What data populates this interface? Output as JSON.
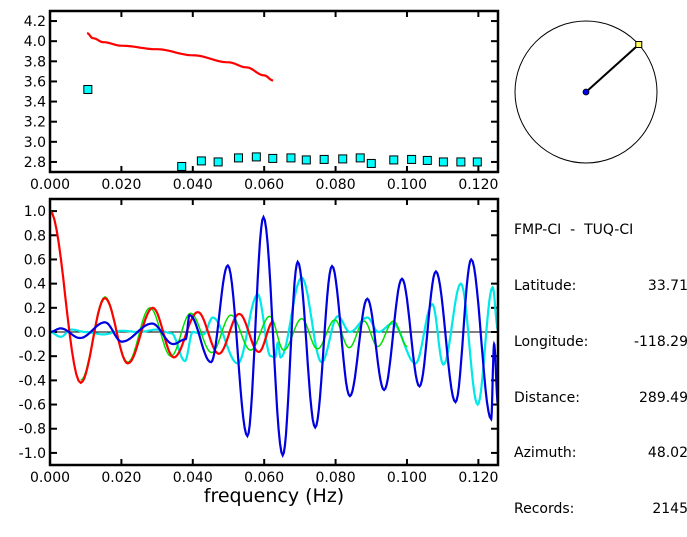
{
  "info": {
    "title": "FMP-CI  -  TUQ-CI",
    "rows": [
      {
        "label": "Latitude:",
        "value": "33.71"
      },
      {
        "label": "Longitude:",
        "value": "-118.29"
      },
      {
        "label": "Distance:",
        "value": "289.49"
      },
      {
        "label": "Azimuth:",
        "value": "48.02"
      },
      {
        "label": "Records:",
        "value": "2145"
      }
    ]
  },
  "azimuth_deg": 48.02,
  "colors": {
    "red": "#ff0000",
    "green": "#00e000",
    "blue": "#0000e0",
    "cyan": "#00e8e8",
    "square": "#00ffff"
  },
  "chart_data": [
    {
      "type": "scatter",
      "title": "",
      "xlabel": "",
      "ylabel": "",
      "xlim": [
        0,
        0.1255
      ],
      "ylim": [
        2.7,
        4.3
      ],
      "xticks": [
        "0.000",
        "0.020",
        "0.040",
        "0.060",
        "0.080",
        "0.100",
        "0.120"
      ],
      "yticks": [
        "2.8",
        "3.0",
        "3.2",
        "3.4",
        "3.6",
        "3.8",
        "4.0",
        "4.2"
      ],
      "series": [
        {
          "name": "red-curve",
          "kind": "line",
          "color": "red",
          "x": [
            0.0104,
            0.012,
            0.015,
            0.02,
            0.03,
            0.04,
            0.05,
            0.055,
            0.06,
            0.0625
          ],
          "y": [
            4.08,
            4.03,
            3.99,
            3.955,
            3.92,
            3.86,
            3.79,
            3.74,
            3.66,
            3.61
          ]
        },
        {
          "name": "squares",
          "kind": "points",
          "color": "square",
          "x": [
            0.0106,
            0.0369,
            0.0424,
            0.0471,
            0.0528,
            0.0578,
            0.0624,
            0.0675,
            0.0718,
            0.0768,
            0.082,
            0.0869,
            0.09,
            0.0963,
            0.1013,
            0.1057,
            0.1102,
            0.1151,
            0.1197
          ],
          "y": [
            3.52,
            2.755,
            2.81,
            2.8,
            2.84,
            2.85,
            2.835,
            2.84,
            2.82,
            2.825,
            2.83,
            2.84,
            2.785,
            2.82,
            2.825,
            2.815,
            2.8,
            2.8,
            2.8
          ]
        }
      ]
    },
    {
      "type": "line",
      "title": "",
      "xlabel": "frequency (Hz)",
      "ylabel": "",
      "xlim": [
        0,
        0.1255
      ],
      "ylim": [
        -1.1,
        1.1
      ],
      "xticks": [
        "0.000",
        "0.020",
        "0.040",
        "0.060",
        "0.080",
        "0.100",
        "0.120"
      ],
      "yticks": [
        "-1.0",
        "-0.8",
        "-0.6",
        "-0.4",
        "-0.2",
        "0.0",
        "0.2",
        "0.4",
        "0.6",
        "0.8",
        "1.0"
      ],
      "series": [
        {
          "name": "cyan",
          "color": "cyan",
          "x": [
            0,
            0.003,
            0.006,
            0.01,
            0.015,
            0.02,
            0.025,
            0.03,
            0.034,
            0.0378,
            0.04,
            0.043,
            0.0456,
            0.0526,
            0.0582,
            0.0618,
            0.0631,
            0.0638,
            0.0646,
            0.0705,
            0.0761,
            0.0806,
            0.084,
            0.0889,
            0.092,
            0.096,
            0.1024,
            0.1071,
            0.1102,
            0.1151,
            0.1198,
            0.124,
            0.1255
          ],
          "y": [
            0,
            -0.04,
            0.02,
            0,
            -0.02,
            0.01,
            0.0,
            0.02,
            -0.01,
            -0.24,
            0.0,
            -0.02,
            0.12,
            -0.26,
            0.31,
            -0.2,
            -0.21,
            -0.09,
            -0.21,
            0.45,
            -0.25,
            0.13,
            0.0,
            0.12,
            0.0,
            0.07,
            -0.26,
            0.23,
            -0.27,
            0.4,
            -0.6,
            0.37,
            0.02
          ]
        },
        {
          "name": "green",
          "color": "green",
          "x": [
            0.0086,
            0.0154,
            0.0218,
            0.028,
            0.0339,
            0.0394,
            0.0453,
            0.0507,
            0.0562,
            0.0616,
            0.0655,
            0.0705,
            0.0749,
            0.0798,
            0.0838,
            0.088,
            0.0918,
            0.0962,
            0.1001
          ],
          "y": [
            -0.4,
            0.29,
            -0.25,
            0.2,
            -0.2,
            0.155,
            -0.17,
            0.14,
            -0.15,
            0.13,
            -0.15,
            0.11,
            -0.14,
            0.1,
            -0.13,
            0.09,
            -0.12,
            0.09,
            -0.12
          ]
        },
        {
          "name": "red",
          "color": "red",
          "x": [
            0,
            0.0086,
            0.0154,
            0.0218,
            0.0288,
            0.0347,
            0.0414,
            0.0473,
            0.053,
            0.0585,
            0.0626
          ],
          "y": [
            1.0,
            -0.42,
            0.28,
            -0.26,
            0.2,
            -0.21,
            0.165,
            -0.18,
            0.15,
            -0.165,
            0.09
          ]
        },
        {
          "name": "blue",
          "color": "blue",
          "x": [
            0,
            0.003,
            0.0084,
            0.0154,
            0.0201,
            0.0286,
            0.0345,
            0.038,
            0.0391,
            0.0451,
            0.0498,
            0.0553,
            0.0598,
            0.0652,
            0.0694,
            0.0743,
            0.079,
            0.084,
            0.0889,
            0.0936,
            0.0986,
            0.1035,
            0.1081,
            0.1136,
            0.118,
            0.1236,
            0.1244,
            0.1255
          ],
          "y": [
            0,
            0.03,
            -0.05,
            0.08,
            -0.08,
            0.07,
            -0.1,
            -0.06,
            0.14,
            -0.25,
            0.55,
            -0.86,
            0.95,
            -1.02,
            0.58,
            -0.79,
            0.545,
            -0.53,
            0.275,
            -0.48,
            0.44,
            -0.45,
            0.5,
            -0.58,
            0.6,
            -0.72,
            -0.1,
            -0.6
          ]
        }
      ]
    }
  ]
}
